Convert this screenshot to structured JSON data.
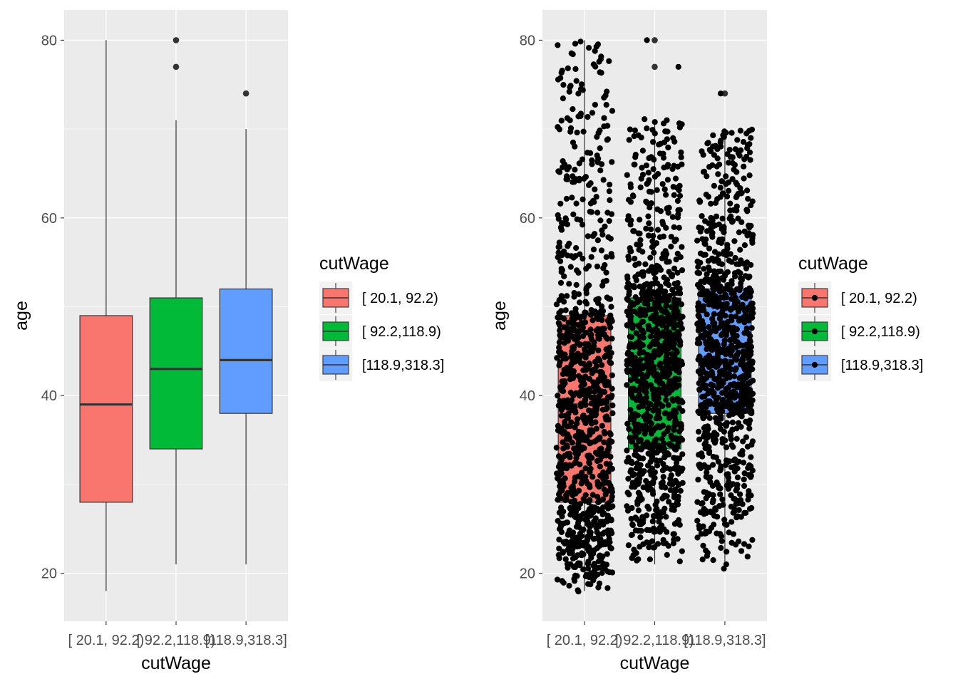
{
  "chart_data": [
    {
      "type": "box",
      "xlabel": "cutWage",
      "ylabel": "age",
      "categories": [
        "[ 20.1, 92.2)",
        "[ 92.2,118.9)",
        "[118.9,318.3]"
      ],
      "ylim": [
        14.6,
        83.4
      ],
      "yticks": [
        20,
        40,
        60,
        80
      ],
      "grid": true,
      "boxes": [
        {
          "category": "[ 20.1, 92.2)",
          "min": 18,
          "q1": 28,
          "median": 39,
          "q3": 49,
          "max": 80,
          "outliers": []
        },
        {
          "category": "[ 92.2,118.9)",
          "min": 21,
          "q1": 34,
          "median": 43,
          "q3": 51,
          "max": 71,
          "outliers": [
            77,
            80
          ]
        },
        {
          "category": "[118.9,318.3]",
          "min": 21,
          "q1": 38,
          "median": 44,
          "q3": 52,
          "max": 70,
          "outliers": [
            74
          ]
        }
      ],
      "legend": {
        "title": "cutWage",
        "position": "right",
        "entries": [
          {
            "label": "[ 20.1, 92.2)",
            "color": "#F8766D"
          },
          {
            "label": "[ 92.2,118.9)",
            "color": "#00BA38"
          },
          {
            "label": "[118.9,318.3]",
            "color": "#619CFF"
          }
        ]
      }
    },
    {
      "type": "box",
      "overlay": "jitter",
      "xlabel": "cutWage",
      "ylabel": "age",
      "categories": [
        "[ 20.1, 92.2)",
        "[ 92.2,118.9)",
        "[118.9,318.3]"
      ],
      "ylim": [
        14.6,
        83.4
      ],
      "yticks": [
        20,
        40,
        60,
        80
      ],
      "grid": true,
      "boxes": [
        {
          "category": "[ 20.1, 92.2)",
          "min": 18,
          "q1": 28,
          "median": 39,
          "q3": 49,
          "max": 80,
          "outliers": []
        },
        {
          "category": "[ 92.2,118.9)",
          "min": 21,
          "q1": 34,
          "median": 43,
          "q3": 51,
          "max": 71,
          "outliers": [
            77,
            80
          ]
        },
        {
          "category": "[118.9,318.3]",
          "min": 21,
          "q1": 38,
          "median": 44,
          "q3": 52,
          "max": 70,
          "outliers": [
            74
          ]
        }
      ],
      "jitter": {
        "approx_points_per_group": [
          1000,
          1000,
          1000
        ],
        "spread": 0.4
      },
      "legend": {
        "title": "cutWage",
        "position": "right",
        "entries": [
          {
            "label": "[ 20.1, 92.2)",
            "color": "#F8766D"
          },
          {
            "label": "[ 92.2,118.9)",
            "color": "#00BA38"
          },
          {
            "label": "[118.9,318.3]",
            "color": "#619CFF"
          }
        ]
      }
    }
  ]
}
